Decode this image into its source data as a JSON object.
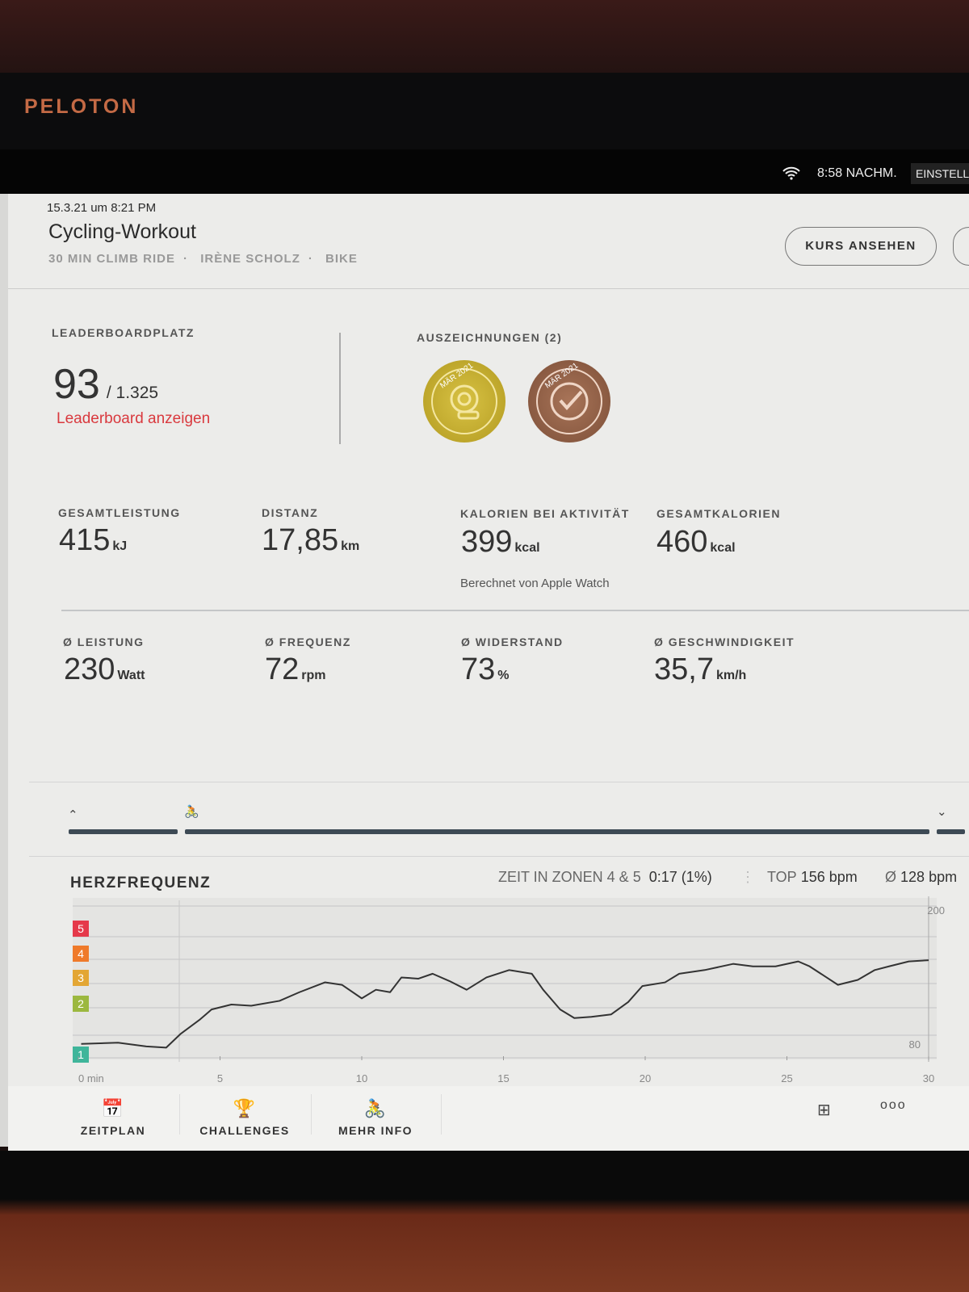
{
  "brand": "PELOTON",
  "status": {
    "time": "8:58 NACHM.",
    "settings_label": "EINSTELL"
  },
  "header": {
    "date": "15.3.21 um 8:21 PM",
    "title": "Cycling-Workout",
    "class_name": "30 MIN CLIMB RIDE",
    "instructor": "IRÈNE SCHOLZ",
    "device": "BIKE",
    "separator": "·",
    "view_class_label": "KURS ANSEHEN"
  },
  "leaderboard": {
    "label": "LEADERBOARDPLATZ",
    "rank": "93",
    "total": "/ 1.325",
    "link": "Leaderboard anzeigen"
  },
  "awards": {
    "label": "AUSZEICHNUNGEN (2)",
    "badges": [
      {
        "text": "MÄR 2021",
        "color": "#c9b030",
        "icon": "tap-icon"
      },
      {
        "text": "MÄR 2021",
        "color": "#94634a",
        "icon": "check-icon"
      }
    ]
  },
  "metrics": [
    {
      "label": "GESAMTLEISTUNG",
      "value": "415",
      "unit": "kJ"
    },
    {
      "label": "DISTANZ",
      "value": "17,85",
      "unit": "km"
    },
    {
      "label": "KALORIEN BEI AKTIVITÄT",
      "value": "399",
      "unit": "kcal",
      "note": "Berechnet von Apple Watch"
    },
    {
      "label": "GESAMTKALORIEN",
      "value": "460",
      "unit": "kcal"
    }
  ],
  "averages": [
    {
      "label": "Ø LEISTUNG",
      "value": "230",
      "unit": "Watt"
    },
    {
      "label": "Ø FREQUENZ",
      "value": "72",
      "unit": "rpm"
    },
    {
      "label": "Ø WIDERSTAND",
      "value": "73",
      "unit": "%"
    },
    {
      "label": "Ø GESCHWINDIGKEIT",
      "value": "35,7",
      "unit": "km/h"
    }
  ],
  "heart_rate": {
    "title": "HERZFREQUENZ",
    "zones_label": "ZEIT IN ZONEN 4 & 5",
    "zones_value": "0:17 (1%)",
    "top_label": "TOP",
    "top_value": "156 bpm",
    "avg_label": "Ø",
    "avg_value": "128 bpm"
  },
  "chart_data": {
    "type": "line",
    "title": "HERZFREQUENZ",
    "xlabel": "min",
    "ylabel": "bpm",
    "xlim": [
      0,
      30
    ],
    "ylim": [
      80,
      200
    ],
    "x_ticks": [
      "0 min",
      "5",
      "10",
      "15",
      "20",
      "25",
      "30"
    ],
    "y_ticks": [
      "200",
      "80"
    ],
    "zones": [
      {
        "label": "1",
        "color": "#3fb59a"
      },
      {
        "label": "2",
        "color": "#9cb83f"
      },
      {
        "label": "3",
        "color": "#e3a634"
      },
      {
        "label": "4",
        "color": "#ef7a2a"
      },
      {
        "label": "5",
        "color": "#e5394a"
      }
    ],
    "series": [
      {
        "name": "Herzfrequenz",
        "x": [
          0.1,
          1.4,
          2.4,
          3.1,
          3.6,
          4.3,
          4.7,
          5.4,
          6.1,
          7.1,
          7.8,
          8.7,
          9.3,
          10.0,
          10.5,
          11.0,
          11.4,
          12.0,
          12.5,
          13.1,
          13.7,
          14.4,
          15.2,
          16.0,
          16.4,
          17.0,
          17.5,
          18.1,
          18.8,
          19.4,
          19.9,
          20.7,
          21.2,
          22.1,
          23.1,
          23.8,
          24.6,
          25.4,
          25.8,
          26.4,
          26.8,
          27.5,
          28.1,
          28.6,
          29.3,
          30.0
        ],
        "y": [
          88,
          89,
          86,
          85,
          96,
          108,
          116,
          120,
          119,
          123,
          130,
          138,
          136,
          125,
          132,
          130,
          142,
          141,
          145,
          139,
          132,
          142,
          148,
          145,
          132,
          116,
          109,
          110,
          112,
          122,
          135,
          138,
          145,
          148,
          153,
          151,
          151,
          155,
          151,
          142,
          136,
          140,
          148,
          151,
          155,
          156
        ]
      }
    ]
  },
  "bottom_nav": [
    {
      "label": "ZEITPLAN",
      "icon": "calendar-icon"
    },
    {
      "label": "CHALLENGES",
      "icon": "trophy-icon"
    },
    {
      "label": "MEHR INFO",
      "icon": "cyclist-icon"
    }
  ]
}
